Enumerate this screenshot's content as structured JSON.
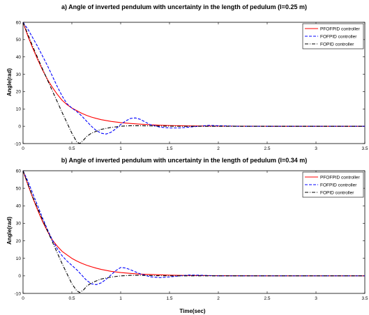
{
  "chart_data": [
    {
      "type": "line",
      "title": "a) Angle of inverted pendulum with uncertainty in the length of pedulum (l=0.25 m)",
      "ylabel": "Angle(rad)",
      "xlabel": "",
      "xlim": [
        0,
        3.5
      ],
      "ylim": [
        -10,
        60
      ],
      "xticks": [
        "0",
        "0.5",
        "1",
        "1.5",
        "2",
        "2.5",
        "3",
        "3.5"
      ],
      "yticks": [
        "-10",
        "0",
        "10",
        "20",
        "30",
        "40",
        "50",
        "60"
      ],
      "legend_position": "top-right",
      "grid": false,
      "series": [
        {
          "name": "PFOFPID controller",
          "color": "#ff0000",
          "style": "solid",
          "x": [
            0,
            0.05,
            0.1,
            0.15,
            0.2,
            0.25,
            0.3,
            0.35,
            0.4,
            0.45,
            0.5,
            0.55,
            0.6,
            0.65,
            0.7,
            0.75,
            0.8,
            0.9,
            1.0,
            1.1,
            1.2,
            1.3,
            1.4,
            1.5,
            1.7,
            2.0,
            2.5,
            3.0,
            3.5
          ],
          "y": [
            60,
            52,
            45,
            38.5,
            32.5,
            27,
            22.5,
            18.5,
            15,
            12.5,
            10.5,
            9,
            7.5,
            6.3,
            5.3,
            4.5,
            3.8,
            2.8,
            2.1,
            1.6,
            1.2,
            0.9,
            0.6,
            0.4,
            0.2,
            0.1,
            0,
            0,
            0
          ]
        },
        {
          "name": "FOFPID controller",
          "color": "#0000ff",
          "style": "dashed",
          "x": [
            0,
            0.05,
            0.1,
            0.15,
            0.2,
            0.25,
            0.3,
            0.35,
            0.4,
            0.45,
            0.5,
            0.55,
            0.6,
            0.65,
            0.7,
            0.75,
            0.8,
            0.85,
            0.9,
            0.95,
            1.0,
            1.05,
            1.1,
            1.15,
            1.2,
            1.25,
            1.3,
            1.4,
            1.5,
            1.6,
            1.7,
            1.8,
            1.9,
            2.0,
            2.2,
            2.5,
            3.0,
            3.5
          ],
          "y": [
            60,
            56,
            51,
            46,
            40.5,
            35,
            29,
            23,
            17.5,
            13,
            10.5,
            8.5,
            6,
            3,
            0,
            -2.5,
            -4,
            -4.5,
            -3.5,
            -1.5,
            1,
            3,
            4.5,
            4.8,
            4,
            2.5,
            1,
            -0.5,
            -1,
            -1,
            -0.5,
            0,
            0.5,
            0.3,
            0,
            0,
            0,
            0
          ]
        },
        {
          "name": "FOPID controller",
          "color": "#000000",
          "style": "dashdot",
          "x": [
            0,
            0.1,
            0.2,
            0.3,
            0.4,
            0.5,
            0.55,
            0.58,
            0.62,
            0.65,
            0.7,
            0.8,
            0.9,
            1.0,
            1.1,
            1.2,
            1.4,
            1.6,
            2.0,
            2.5,
            3.0,
            3.5
          ],
          "y": [
            60,
            46,
            33,
            20.5,
            8,
            -4,
            -9,
            -10,
            -8,
            -6,
            -4,
            -1.8,
            -0.7,
            0,
            0.3,
            0.3,
            0.1,
            0,
            0,
            0,
            0,
            0
          ]
        }
      ]
    },
    {
      "type": "line",
      "title": "b) Angle of inverted pendulum with uncertainty in the length of pedulum (l=0.34 m)",
      "ylabel": "Angle(rad)",
      "xlabel": "Time(sec)",
      "xlim": [
        0,
        3.5
      ],
      "ylim": [
        -10,
        60
      ],
      "xticks": [
        "0",
        "0.5",
        "1",
        "1.5",
        "2",
        "2.5",
        "3",
        "3.5"
      ],
      "yticks": [
        "-10",
        "0",
        "10",
        "20",
        "30",
        "40",
        "50",
        "60"
      ],
      "legend_position": "top-right",
      "grid": false,
      "series": [
        {
          "name": "PFOFPID controller",
          "color": "#ff0000",
          "style": "solid",
          "x": [
            0,
            0.05,
            0.1,
            0.15,
            0.2,
            0.25,
            0.3,
            0.35,
            0.4,
            0.45,
            0.5,
            0.55,
            0.6,
            0.65,
            0.7,
            0.75,
            0.8,
            0.9,
            1.0,
            1.1,
            1.2,
            1.3,
            1.4,
            1.5,
            1.7,
            2.0,
            2.5,
            3.0,
            3.5
          ],
          "y": [
            60,
            52,
            44.5,
            37.5,
            31,
            25.5,
            20.5,
            17,
            14,
            12,
            10,
            8.5,
            7.2,
            6.1,
            5.2,
            4.4,
            3.7,
            2.6,
            1.9,
            1.4,
            1.0,
            0.8,
            0.6,
            0.4,
            0.2,
            0.1,
            0,
            0,
            0
          ]
        },
        {
          "name": "FOFPID controller",
          "color": "#0000ff",
          "style": "dashed",
          "x": [
            0,
            0.05,
            0.1,
            0.15,
            0.2,
            0.25,
            0.3,
            0.35,
            0.4,
            0.45,
            0.5,
            0.55,
            0.6,
            0.65,
            0.7,
            0.75,
            0.8,
            0.85,
            0.9,
            0.95,
            1.0,
            1.05,
            1.1,
            1.15,
            1.2,
            1.3,
            1.4,
            1.5,
            1.6,
            1.7,
            1.8,
            2.0,
            2.5,
            3.0,
            3.5
          ],
          "y": [
            60,
            54,
            47,
            40,
            33,
            26.5,
            20.5,
            15.5,
            11.5,
            8.5,
            6,
            3.5,
            0.5,
            -2.5,
            -4.5,
            -5,
            -4,
            -2,
            0.5,
            3,
            4.8,
            4.5,
            3.5,
            2.3,
            1.2,
            -0.5,
            -1,
            -0.6,
            0,
            0.5,
            0.4,
            0,
            0,
            0,
            0
          ]
        },
        {
          "name": "FOPID controller",
          "color": "#000000",
          "style": "dashdot",
          "x": [
            0,
            0.1,
            0.2,
            0.3,
            0.4,
            0.5,
            0.55,
            0.58,
            0.62,
            0.65,
            0.7,
            0.8,
            0.9,
            1.0,
            1.1,
            1.2,
            1.4,
            1.6,
            2.0,
            2.5,
            3.0,
            3.5
          ],
          "y": [
            60,
            45,
            32,
            19.5,
            7,
            -4.5,
            -8.5,
            -9.5,
            -8,
            -6,
            -4,
            -1.8,
            -0.7,
            0,
            0.3,
            0.3,
            0.1,
            0,
            0,
            0,
            0,
            0
          ]
        }
      ]
    }
  ]
}
